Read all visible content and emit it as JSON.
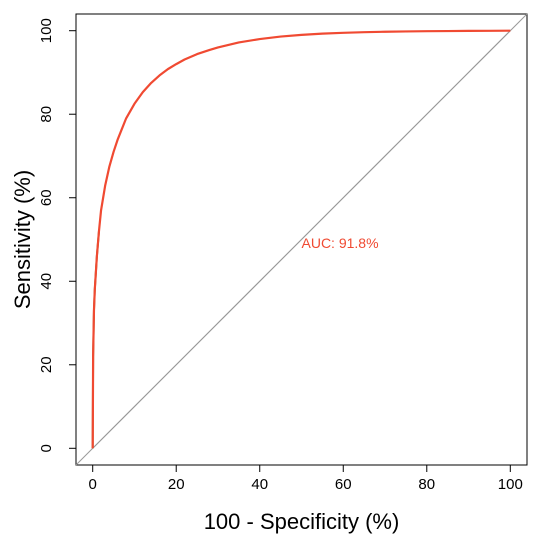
{
  "chart_data": {
    "type": "line",
    "title": "",
    "xlabel": "100 -  Specificity (%)",
    "ylabel": "Sensitivity (%)",
    "xlim": [
      -4,
      104
    ],
    "ylim": [
      -4,
      104
    ],
    "x_ticks": [
      0,
      20,
      40,
      60,
      80,
      100
    ],
    "y_ticks": [
      0,
      20,
      40,
      60,
      80,
      100
    ],
    "x_tick_labels": [
      "0",
      "20",
      "40",
      "60",
      "80",
      "100"
    ],
    "y_tick_labels": [
      "0",
      "20",
      "40",
      "60",
      "80",
      "100"
    ],
    "grid": false,
    "legend": "none",
    "colors": {
      "roc": "#f04a32",
      "roc_base": "#7a7a2a",
      "reference": "#9a9a9a",
      "annotation": "#f04a32"
    },
    "reference_line": {
      "x": [
        0,
        100
      ],
      "y": [
        0,
        100
      ]
    },
    "series": [
      {
        "x": [
          0,
          0.1,
          0.3,
          0.5,
          1,
          1.5,
          2,
          3,
          4,
          5,
          6,
          7,
          8,
          10,
          12,
          14,
          16,
          18,
          20,
          22,
          25,
          28,
          30,
          35,
          40,
          45,
          50,
          55,
          60,
          65,
          70,
          75,
          80,
          85,
          90,
          95,
          100
        ],
        "y": [
          0,
          22,
          33,
          38,
          46,
          52,
          57,
          63,
          67.5,
          71,
          74,
          76.5,
          79,
          82.5,
          85.3,
          87.5,
          89.3,
          90.8,
          92,
          93.1,
          94.4,
          95.4,
          96,
          97.2,
          98,
          98.6,
          99,
          99.3,
          99.5,
          99.65,
          99.75,
          99.82,
          99.88,
          99.92,
          99.95,
          99.98,
          100
        ]
      }
    ],
    "annotations": [
      {
        "text": "AUC: 91.8%",
        "x": 50,
        "y": 48
      }
    ]
  }
}
